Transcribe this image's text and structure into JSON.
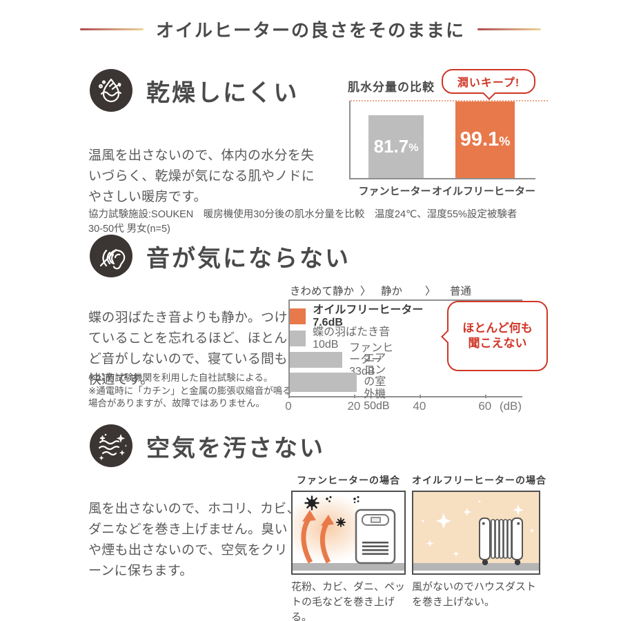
{
  "title": {
    "text": "オイルヒーターの良さをそのままに"
  },
  "colors": {
    "accent_orange": "#e8794b",
    "bar_gray": "#bdbdbd",
    "callout_red": "#cf3526",
    "icon_background": "#3b3533",
    "panel_wall_peach": "#f7dfc2"
  },
  "sections": {
    "dry": {
      "icon": "water-drop-icon",
      "heading": "乾燥しにくい",
      "body": "温風を出さないので、体内の水分を失いづらく、乾燥が気になる肌やノドにやさしい暖房です。",
      "footnote": "協力試験施設:SOUKEN　暖房機使用30分後の肌水分量を比較　温度24℃、湿度55%設定被験者\n30-50代 男女(n=5)"
    },
    "quiet": {
      "icon": "ear-mute-icon",
      "heading": "音が気にならない",
      "body": "蝶の羽ばたき音よりも静か。つけていることを忘れるほど、ほとんど音がしないので、寝ている間も快適です。",
      "footnotes": [
        "※公的試験機関を利用した自社試験による。",
        "※通電時に「カチン」と金属の膨張収縮音が鳴る場合がありますが、故障ではありません。"
      ]
    },
    "clean": {
      "icon": "clean-air-icon",
      "heading": "空気を汚さない",
      "body": "風を出さないので、ホコリ、カビ、ダニなどを巻き上げません。臭いや煙も出さないので、空気をクリーンに保ちます。",
      "panels": [
        {
          "title": "ファンヒーターの場合",
          "illustration": "fan-heater-blowing-dust-illustration",
          "caption": "花粉、カビ、ダニ、ペットの毛などを巻き上げる。"
        },
        {
          "title": "オイルフリーヒーターの場合",
          "illustration": "oil-free-heater-clean-air-illustration",
          "caption": "風がないのでハウスダストを巻き上げない。"
        }
      ]
    }
  },
  "chart_data": [
    {
      "type": "bar",
      "title": "肌水分量の比較",
      "categories": [
        "ファンヒーター",
        "オイルフリーヒーター"
      ],
      "values": [
        81.7,
        99.1
      ],
      "value_labels": [
        "81.7",
        "99.1"
      ],
      "unit": "%",
      "ylim": [
        0,
        100
      ],
      "grid": false,
      "target_line": 99.1,
      "callout": "潤いキープ!",
      "bar_colors": [
        "#bdbdbd",
        "#e8794b"
      ]
    },
    {
      "type": "bar",
      "orientation": "horizontal",
      "scale_labels": [
        "きわめて静か",
        "静か",
        "普通"
      ],
      "scale_separator": "〉",
      "categories": [
        "オイルフリーヒーター",
        "蝶の羽ばたき音",
        "ファンヒーター",
        "エアコンの室外機"
      ],
      "values": [
        7.6,
        10,
        33,
        50
      ],
      "bar_labels": [
        "オイルフリーヒーター 7.6dB",
        "蝶の羽ばたき音 10dB",
        "ファンヒーター 33dB",
        "エアコンの室外機\n50dB"
      ],
      "unit": "dB",
      "xlim": [
        0,
        71
      ],
      "xticks": [
        0,
        20,
        40,
        60
      ],
      "xtick_labels": [
        "0",
        "20",
        "40",
        "60"
      ],
      "xaxis_unit_label": "(dB)",
      "callout": "ほとんど何も\n聞こえない",
      "bar_colors": [
        "#e8794b",
        "#bdbdbd",
        "#bdbdbd",
        "#bdbdbd"
      ]
    }
  ]
}
